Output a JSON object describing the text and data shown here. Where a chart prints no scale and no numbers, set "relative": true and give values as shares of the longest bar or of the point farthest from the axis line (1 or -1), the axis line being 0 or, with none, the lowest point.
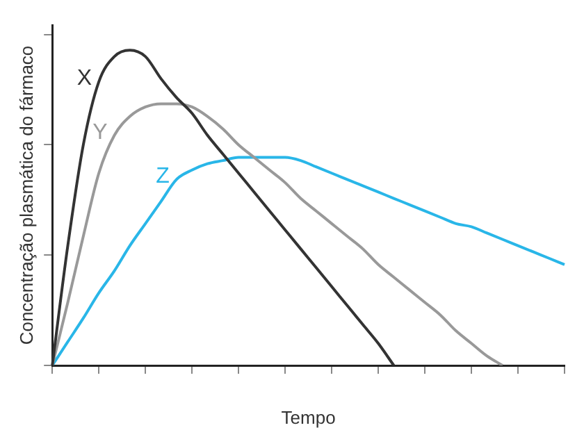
{
  "chart_data": {
    "type": "line",
    "relative": true,
    "xlabel": "Tempo",
    "ylabel": "Concentração plasmática do fármaco",
    "legend": false,
    "grid": false,
    "marker": "none",
    "line_style": "solid",
    "categories": [
      null,
      null,
      null,
      null,
      null,
      null,
      null,
      null,
      null,
      null,
      null,
      null,
      null,
      null,
      null,
      null,
      null,
      null,
      null,
      null,
      null,
      null,
      null,
      null,
      null,
      null,
      null,
      null,
      null,
      null,
      null,
      null,
      null,
      null
    ],
    "series": [
      {
        "name": "X",
        "color": "#333333",
        "values": [
          0,
          0.38,
          0.7,
          0.9,
          0.98,
          1,
          0.98,
          0.91,
          0.85,
          0.8,
          0.73,
          0.67,
          0.61,
          0.55,
          0.49,
          0.43,
          0.37,
          0.31,
          0.25,
          0.19,
          0.13,
          0.07,
          0,
          null,
          null,
          null,
          null,
          null,
          null,
          null,
          null,
          null,
          null,
          null
        ]
      },
      {
        "name": "Y",
        "color": "#999999",
        "values": [
          0,
          0.2,
          0.41,
          0.61,
          0.73,
          0.79,
          0.82,
          0.83,
          0.83,
          0.82,
          0.79,
          0.75,
          0.7,
          0.66,
          0.62,
          0.58,
          0.53,
          0.49,
          0.45,
          0.41,
          0.37,
          0.32,
          0.28,
          0.24,
          0.2,
          0.16,
          0.11,
          0.07,
          0.03,
          0,
          null,
          null,
          null,
          null
        ]
      },
      {
        "name": "Z",
        "color": "#29b6e8",
        "values": [
          0,
          0.075,
          0.15,
          0.23,
          0.3,
          0.38,
          0.45,
          0.52,
          0.59,
          0.62,
          0.64,
          0.65,
          0.66,
          0.66,
          0.66,
          0.66,
          0.65,
          0.63,
          0.61,
          0.59,
          0.57,
          0.55,
          0.53,
          0.51,
          0.49,
          0.47,
          0.45,
          0.44,
          0.42,
          0.4,
          0.38,
          0.36,
          0.34,
          0.32
        ]
      }
    ]
  }
}
